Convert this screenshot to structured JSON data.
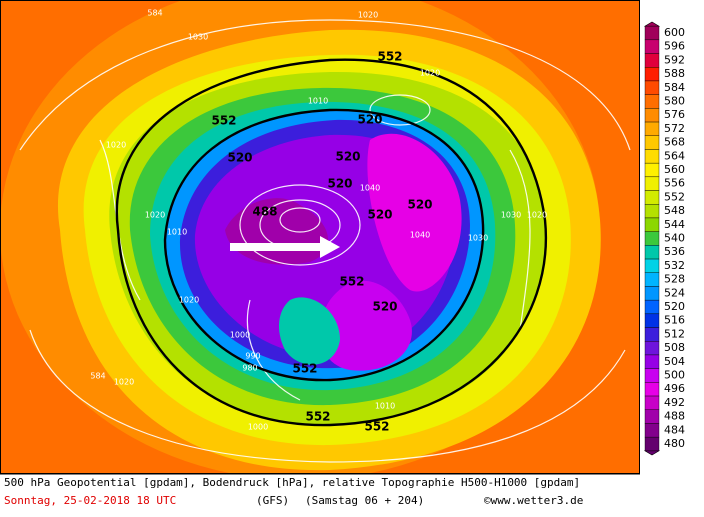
{
  "map": {
    "contour_labels": [
      "552",
      "552",
      "552",
      "552",
      "552",
      "552",
      "520",
      "520",
      "520",
      "520",
      "520",
      "520",
      "520",
      "488",
      "1020",
      "1030",
      "1020",
      "1020",
      "1010",
      "1040",
      "1040",
      "1030",
      "1000",
      "990",
      "980",
      "1020",
      "1010",
      "1020",
      "1030",
      "1020",
      "1000",
      "1010",
      "584",
      "584",
      "1020"
    ],
    "colorbar": {
      "ticks": [
        600,
        596,
        592,
        588,
        584,
        580,
        576,
        572,
        568,
        564,
        560,
        556,
        552,
        548,
        544,
        540,
        536,
        532,
        528,
        524,
        520,
        516,
        512,
        508,
        504,
        500,
        496,
        492,
        488,
        484,
        480
      ],
      "colors": [
        "#a0005a",
        "#c8006e",
        "#e0003c",
        "#ff1e00",
        "#ff4b00",
        "#ff6e00",
        "#ff8c00",
        "#ffaa00",
        "#ffc800",
        "#ffdc00",
        "#fff000",
        "#f0f000",
        "#d2eb00",
        "#b4e100",
        "#8cd700",
        "#3cc83c",
        "#00c8aa",
        "#00d2e6",
        "#00b4ff",
        "#0096ff",
        "#0064ff",
        "#0032e6",
        "#3c1edc",
        "#6e14dc",
        "#9600e6",
        "#c800f0",
        "#e600e6",
        "#c800c8",
        "#a000aa",
        "#82008c",
        "#64006e"
      ]
    }
  },
  "footer": {
    "line1": "500 hPa Geopotential [gpdam], Bodendruck [hPa], relative Topographie H500-H1000 [gpdam]",
    "date": "Sonntag, 25-02-2018  18 UTC",
    "model": "(GFS)",
    "run": "(Samstag 06 + 204)",
    "credit": "©www.wetter3.de"
  }
}
